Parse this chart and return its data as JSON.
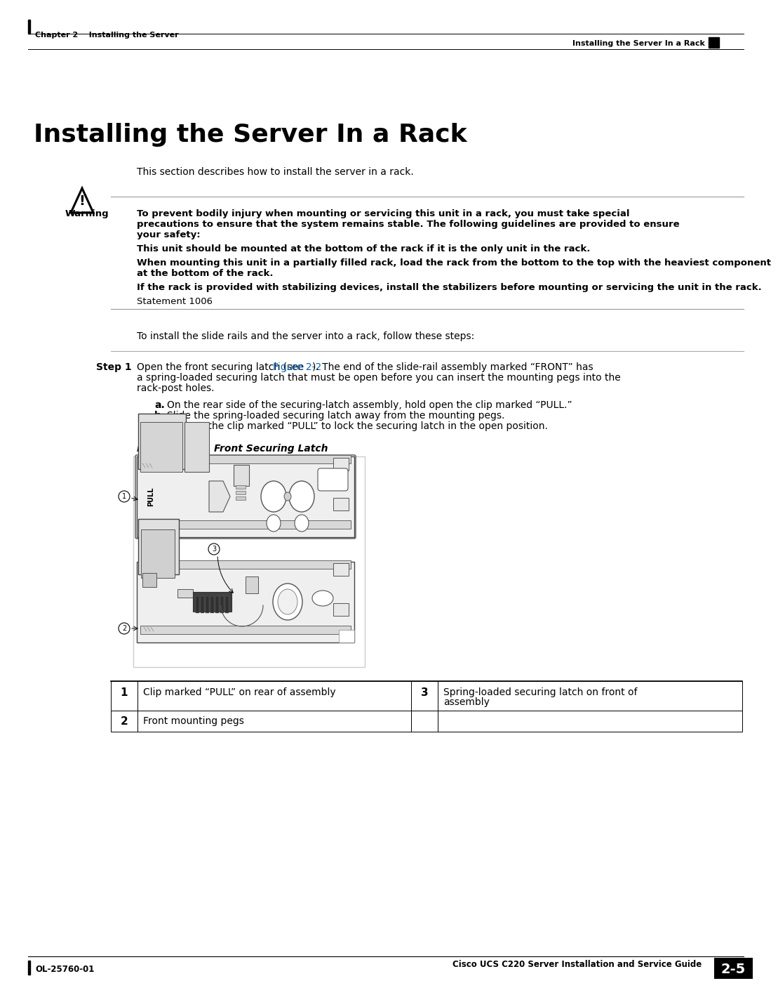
{
  "bg_color": "#ffffff",
  "header_left": "Chapter 2    Installing the Server",
  "header_right": "Installing the Server In a Rack",
  "footer_left": "OL-25760-01",
  "footer_right_guide": "Cisco UCS C220 Server Installation and Service Guide",
  "footer_page": "2-5",
  "page_title": "Installing the Server In a Rack",
  "intro_text": "This section describes how to install the server in a rack.",
  "warning_label": "Warning",
  "warning_bold1": "To prevent bodily injury when mounting or servicing this unit in a rack, you must take special",
  "warning_bold2": "precautions to ensure that the system remains stable. The following guidelines are provided to ensure",
  "warning_bold3": "your safety:",
  "warning_line2": "This unit should be mounted at the bottom of the rack if it is the only unit in the rack.",
  "warning_line3a": "When mounting this unit in a partially filled rack, load the rack from the bottom to the top with the heaviest component",
  "warning_line3b": "at the bottom of the rack.",
  "warning_line4": "If the rack is provided with stabilizing devices, install the stabilizers before mounting or servicing the unit in the rack.",
  "warning_statement": "Statement 1006",
  "step_intro": "To install the slide rails and the server into a rack, follow these steps:",
  "step1_label": "Step 1",
  "step1_text_pre": "Open the front securing latch (see ",
  "step1_link": "Figure 2-2",
  "step1_text_post1": "). The end of the slide-rail assembly marked “FRONT” has",
  "step1_text_post2": "a spring-loaded securing latch that must be open before you can insert the mounting pegs into the",
  "step1_text_post3": "rack-post holes.",
  "sub_a": "On the rear side of the securing-latch assembly, hold open the clip marked “PULL.”",
  "sub_b": "Slide the spring-loaded securing latch away from the mounting pegs.",
  "sub_c": "Release the clip marked “PULL” to lock the securing latch in the open position.",
  "fig_label": "Figure 2-2",
  "fig_title": "Front Securing Latch",
  "table_row1_num": "1",
  "table_row1_text": "Clip marked “PULL” on rear of assembly",
  "table_row1_num2": "3",
  "table_row1_text2a": "Spring-loaded securing latch on front of",
  "table_row1_text2b": "assembly",
  "table_row2_num": "2",
  "table_row2_text": "Front mounting pegs",
  "link_color": "#0563C1",
  "text_color": "#000000"
}
